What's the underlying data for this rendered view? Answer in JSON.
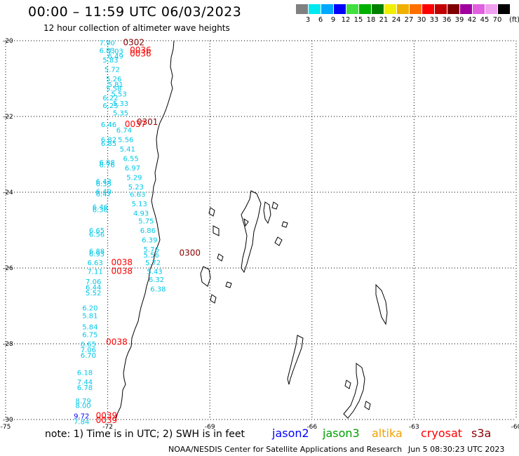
{
  "header": {
    "title": "00:00 – 11:59 UTC 06/03/2023",
    "subtitle": "12 hour collection of altimeter wave heights"
  },
  "scale": {
    "unit": "(ft)",
    "items": [
      {
        "label": "3",
        "color": "#808080"
      },
      {
        "label": "6",
        "color": "#00e8f0"
      },
      {
        "label": "9",
        "color": "#00a8ff"
      },
      {
        "label": "12",
        "color": "#0000ff"
      },
      {
        "label": "15",
        "color": "#40e040"
      },
      {
        "label": "18",
        "color": "#00b000"
      },
      {
        "label": "21",
        "color": "#008000"
      },
      {
        "label": "24",
        "color": "#f0f000"
      },
      {
        "label": "27",
        "color": "#f0b000"
      },
      {
        "label": "30",
        "color": "#ff7000"
      },
      {
        "label": "33",
        "color": "#ff0000"
      },
      {
        "label": "36",
        "color": "#c00000"
      },
      {
        "label": "39",
        "color": "#800000"
      },
      {
        "label": "42",
        "color": "#a000a0"
      },
      {
        "label": "45",
        "color": "#e060e0"
      },
      {
        "label": "70",
        "color": "#f0a0f0"
      },
      {
        "label": "",
        "color": "#000000"
      }
    ]
  },
  "map": {
    "lon_labels": [
      "-75",
      "-72",
      "-69",
      "-66",
      "-63",
      "-60"
    ],
    "lat_labels": [
      "-20",
      "-22",
      "-24",
      "-26",
      "-28",
      "-30"
    ]
  },
  "observations": [
    {
      "text": "7.90",
      "color": "#00c8e8",
      "lon": -72.25,
      "lat": -20.05
    },
    {
      "text": "0302",
      "color": "#8b0000",
      "lon": -71.55,
      "lat": -20.05
    },
    {
      "text": "6.83",
      "color": "#00c8e8",
      "lon": -72.25,
      "lat": -20.25
    },
    {
      "text": "7.03",
      "color": "#00c8e8",
      "lon": -72.0,
      "lat": -20.27
    },
    {
      "text": "0036",
      "color": "#ff0000",
      "lon": -71.35,
      "lat": -20.25
    },
    {
      "text": "0036",
      "color": "#ff0000",
      "lon": -71.35,
      "lat": -20.34
    },
    {
      "text": "6.49",
      "color": "#00c8e8",
      "lon": -72.0,
      "lat": -20.4
    },
    {
      "text": "5.83",
      "color": "#00c8e8",
      "lon": -72.15,
      "lat": -20.5
    },
    {
      "text": "5.72",
      "color": "#00c8e8",
      "lon": -72.1,
      "lat": -20.75
    },
    {
      "text": "5.26",
      "color": "#00c8e8",
      "lon": -72.05,
      "lat": -21.0
    },
    {
      "text": "5.81",
      "color": "#00c8e8",
      "lon": -72.0,
      "lat": -21.15
    },
    {
      "text": "5.58",
      "color": "#00c8e8",
      "lon": -72.05,
      "lat": -21.25
    },
    {
      "text": "5.53",
      "color": "#00c8e8",
      "lon": -71.9,
      "lat": -21.4
    },
    {
      "text": "6.22",
      "color": "#00c8e8",
      "lon": -72.15,
      "lat": -21.5
    },
    {
      "text": "5.33",
      "color": "#00c8e8",
      "lon": -71.85,
      "lat": -21.65
    },
    {
      "text": "6.25",
      "color": "#00c8e8",
      "lon": -72.15,
      "lat": -21.7
    },
    {
      "text": "5.35",
      "color": "#00c8e8",
      "lon": -71.85,
      "lat": -21.9
    },
    {
      "text": "0301",
      "color": "#8b0000",
      "lon": -71.15,
      "lat": -22.15
    },
    {
      "text": "0037",
      "color": "#ff0000",
      "lon": -71.5,
      "lat": -22.2
    },
    {
      "text": "6.46",
      "color": "#00c8e8",
      "lon": -72.2,
      "lat": -22.2
    },
    {
      "text": "6.74",
      "color": "#00c8e8",
      "lon": -71.75,
      "lat": -22.35
    },
    {
      "text": "6.82",
      "color": "#00c8e8",
      "lon": -72.2,
      "lat": -22.6
    },
    {
      "text": "5.56",
      "color": "#00c8e8",
      "lon": -71.7,
      "lat": -22.6
    },
    {
      "text": "6.85",
      "color": "#00c8e8",
      "lon": -72.2,
      "lat": -22.7
    },
    {
      "text": "5.41",
      "color": "#00c8e8",
      "lon": -71.65,
      "lat": -22.85
    },
    {
      "text": "6.55",
      "color": "#00c8e8",
      "lon": -71.55,
      "lat": -23.1
    },
    {
      "text": "6.88",
      "color": "#00c8e8",
      "lon": -72.25,
      "lat": -23.2
    },
    {
      "text": "6.76",
      "color": "#00c8e8",
      "lon": -72.25,
      "lat": -23.27
    },
    {
      "text": "6.97",
      "color": "#00c8e8",
      "lon": -71.5,
      "lat": -23.35
    },
    {
      "text": "5.29",
      "color": "#00c8e8",
      "lon": -71.45,
      "lat": -23.6
    },
    {
      "text": "6.43",
      "color": "#00c8e8",
      "lon": -72.35,
      "lat": -23.7
    },
    {
      "text": "6.35",
      "color": "#00c8e8",
      "lon": -72.35,
      "lat": -23.77
    },
    {
      "text": "5.23",
      "color": "#00c8e8",
      "lon": -71.4,
      "lat": -23.85
    },
    {
      "text": "6.40",
      "color": "#00c8e8",
      "lon": -72.35,
      "lat": -23.97
    },
    {
      "text": "6.47",
      "color": "#00c8e8",
      "lon": -72.35,
      "lat": -24.04
    },
    {
      "text": "6.63",
      "color": "#00c8e8",
      "lon": -71.35,
      "lat": -24.05
    },
    {
      "text": "5.13",
      "color": "#00c8e8",
      "lon": -71.3,
      "lat": -24.3
    },
    {
      "text": "6.46",
      "color": "#00c8e8",
      "lon": -72.45,
      "lat": -24.38
    },
    {
      "text": "6.36",
      "color": "#00c8e8",
      "lon": -72.45,
      "lat": -24.45
    },
    {
      "text": "4.93",
      "color": "#00c8e8",
      "lon": -71.25,
      "lat": -24.55
    },
    {
      "text": "5.75",
      "color": "#00c8e8",
      "lon": -71.1,
      "lat": -24.75
    },
    {
      "text": "6.65",
      "color": "#00c8e8",
      "lon": -72.55,
      "lat": -25.0
    },
    {
      "text": "6.86",
      "color": "#00c8e8",
      "lon": -71.05,
      "lat": -25.0
    },
    {
      "text": "6.56",
      "color": "#00c8e8",
      "lon": -72.55,
      "lat": -25.1
    },
    {
      "text": "6.39",
      "color": "#00c8e8",
      "lon": -71.0,
      "lat": -25.25
    },
    {
      "text": "5.76",
      "color": "#00c8e8",
      "lon": -70.95,
      "lat": -25.5
    },
    {
      "text": "0300",
      "color": "#8b0000",
      "lon": -69.9,
      "lat": -25.6
    },
    {
      "text": "6.88",
      "color": "#00c8e8",
      "lon": -72.55,
      "lat": -25.55
    },
    {
      "text": "6.93",
      "color": "#00c8e8",
      "lon": -72.55,
      "lat": -25.62
    },
    {
      "text": "5.56",
      "color": "#00c8e8",
      "lon": -70.95,
      "lat": -25.65
    },
    {
      "text": "5.72",
      "color": "#00c8e8",
      "lon": -70.9,
      "lat": -25.85
    },
    {
      "text": "6.63",
      "color": "#00c8e8",
      "lon": -72.6,
      "lat": -25.85
    },
    {
      "text": "0038",
      "color": "#ff0000",
      "lon": -71.9,
      "lat": -25.85
    },
    {
      "text": "7.11",
      "color": "#00c8e8",
      "lon": -72.6,
      "lat": -26.08
    },
    {
      "text": "0038",
      "color": "#ff0000",
      "lon": -71.9,
      "lat": -26.08
    },
    {
      "text": "5.43",
      "color": "#00c8e8",
      "lon": -70.85,
      "lat": -26.08
    },
    {
      "text": "6.32",
      "color": "#00c8e8",
      "lon": -70.8,
      "lat": -26.3
    },
    {
      "text": "7.06",
      "color": "#00c8e8",
      "lon": -72.65,
      "lat": -26.35
    },
    {
      "text": "6.44",
      "color": "#00c8e8",
      "lon": -72.65,
      "lat": -26.5
    },
    {
      "text": "6.38",
      "color": "#00c8e8",
      "lon": -70.75,
      "lat": -26.55
    },
    {
      "text": "5.52",
      "color": "#00c8e8",
      "lon": -72.65,
      "lat": -26.65
    },
    {
      "text": "6.20",
      "color": "#00c8e8",
      "lon": -72.75,
      "lat": -27.05
    },
    {
      "text": "5.81",
      "color": "#00c8e8",
      "lon": -72.75,
      "lat": -27.25
    },
    {
      "text": "5.84",
      "color": "#00c8e8",
      "lon": -72.75,
      "lat": -27.55
    },
    {
      "text": "6.75",
      "color": "#00c8e8",
      "lon": -72.75,
      "lat": -27.75
    },
    {
      "text": "0038",
      "color": "#ff0000",
      "lon": -72.05,
      "lat": -27.95
    },
    {
      "text": "6.65",
      "color": "#00c8e8",
      "lon": -72.8,
      "lat": -28.0
    },
    {
      "text": "7.06",
      "color": "#00c8e8",
      "lon": -72.8,
      "lat": -28.15
    },
    {
      "text": "6.70",
      "color": "#00c8e8",
      "lon": -72.8,
      "lat": -28.3
    },
    {
      "text": "6.18",
      "color": "#00c8e8",
      "lon": -72.9,
      "lat": -28.75
    },
    {
      "text": "7.44",
      "color": "#00c8e8",
      "lon": -72.9,
      "lat": -29.0
    },
    {
      "text": "6.78",
      "color": "#00c8e8",
      "lon": -72.9,
      "lat": -29.15
    },
    {
      "text": "8.79",
      "color": "#00c8e8",
      "lon": -72.95,
      "lat": -29.5
    },
    {
      "text": "8.00",
      "color": "#00c8e8",
      "lon": -72.95,
      "lat": -29.62
    },
    {
      "text": "9.72",
      "color": "#0000ff",
      "lon": -73.0,
      "lat": -29.9
    },
    {
      "text": "0039",
      "color": "#ff0000",
      "lon": -72.35,
      "lat": -29.9
    },
    {
      "text": "7.84",
      "color": "#00c8e8",
      "lon": -73.0,
      "lat": -30.05
    },
    {
      "text": "0039",
      "color": "#ff0000",
      "lon": -72.35,
      "lat": -30.02
    }
  ],
  "footer": {
    "note": "note: 1) Time is in UTC; 2) SWH is in feet",
    "satellites": [
      {
        "label": "jason2",
        "color": "#0000ff"
      },
      {
        "label": "jason3",
        "color": "#00a000"
      },
      {
        "label": "altika",
        "color": "#f0a000"
      },
      {
        "label": "cryosat",
        "color": "#ff0000"
      },
      {
        "label": "s3a",
        "color": "#8b0000"
      }
    ],
    "credit": "NOAA/NESDIS Center for Satellite Applications and Research",
    "date": "Jun  5 08:30:23 UTC 2023"
  }
}
